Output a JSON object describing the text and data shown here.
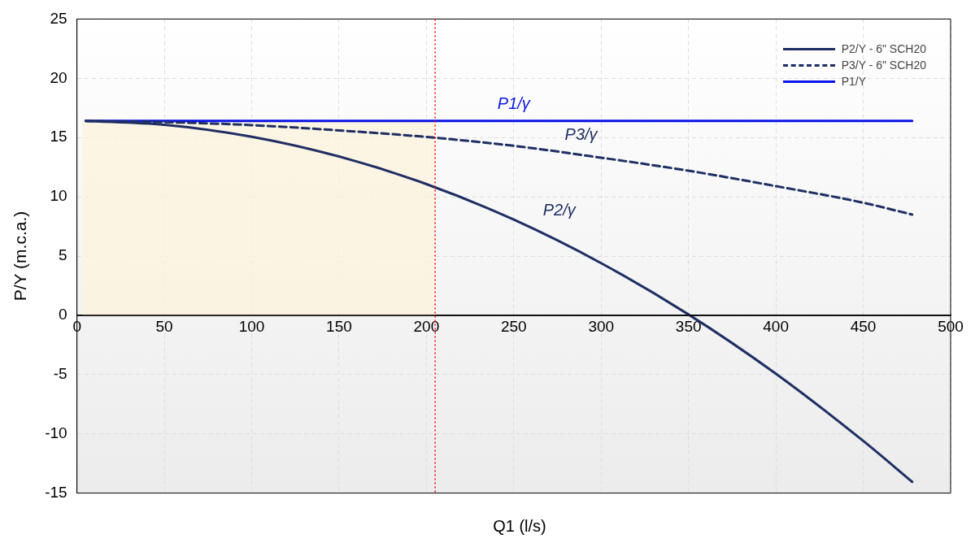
{
  "chart_data": {
    "type": "line",
    "xlabel": "Q1 (l/s)",
    "ylabel": "P/Y (m.c.a.)",
    "xlim": [
      0,
      500
    ],
    "xticks": [
      0,
      50,
      100,
      150,
      200,
      250,
      300,
      350,
      400,
      450,
      500
    ],
    "ylim": [
      -15,
      25
    ],
    "yticks": [
      -15,
      -10,
      -5,
      0,
      5,
      10,
      15,
      20,
      25
    ],
    "grid": true,
    "legend": "top right",
    "marker": "none",
    "series": [
      {
        "name": "P2/Y - 6\" SCH20",
        "color": "#1f2f63",
        "line_style": "solid",
        "x": [
          5,
          50,
          100,
          150,
          200,
          250,
          300,
          350,
          400,
          450,
          478
        ],
        "values": [
          16.4,
          16.07,
          15.07,
          13.4,
          11.07,
          8.07,
          4.4,
          0.07,
          -4.93,
          -10.6,
          -14.05
        ]
      },
      {
        "name": "P3/Y - 6\" SCH20",
        "color": "#1f2f63",
        "line_style": "dashed",
        "x": [
          5,
          50,
          100,
          150,
          200,
          250,
          300,
          350,
          400,
          450,
          478
        ],
        "values": [
          16.4,
          16.3,
          16.05,
          15.6,
          15.05,
          14.3,
          13.3,
          12.2,
          10.9,
          9.5,
          8.5
        ]
      },
      {
        "name": "P1/Y",
        "color": "#0a14e6",
        "line_style": "solid",
        "x": [
          5,
          478
        ],
        "values": [
          16.4,
          16.4
        ]
      }
    ],
    "ref_lines": [
      {
        "axis": "x",
        "value": 205,
        "color": "#ff0000",
        "line_style": "dotted"
      }
    ],
    "bands": [
      {
        "axis": "x",
        "from": 3,
        "to": 205,
        "color": "#fdf3dc"
      }
    ],
    "annotations": [
      "P1/γ",
      "P3/γ",
      "P2/γ"
    ]
  }
}
